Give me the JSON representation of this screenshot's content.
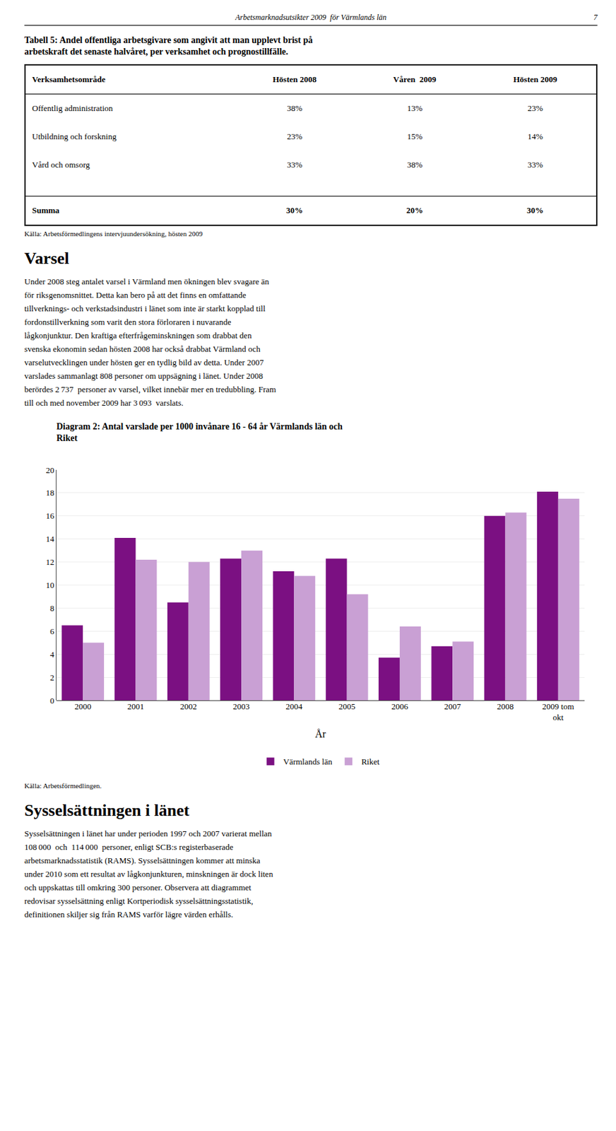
{
  "page_header": "Arbetsmarknadsutsikter 2009  för Värmlands län",
  "page_number": "7",
  "table": {
    "title_lines": [
      "Tabell 5: Andel offentliga arbetsgivare som angivit att man upplevt brist på",
      "arbetskraft det senaste halvåret, per verksamhet och prognostillfälle."
    ],
    "headers": [
      "Verksamhetsområde",
      "Hösten 2008",
      "Våren  2009",
      "Hösten 2009"
    ],
    "rows": [
      [
        "Offentlig administration",
        "38%",
        "13%",
        "23%"
      ],
      [
        "Utbildning och forskning",
        "23%",
        "15%",
        "14%"
      ],
      [
        "Vård och omsorg",
        "33%",
        "38%",
        "33%"
      ],
      [
        "Summa",
        "30%",
        "20%",
        "30%"
      ]
    ],
    "source": "Källa: Arbetsförmedlingens intervjuundersökning, hösten 2009"
  },
  "section_title": "Varsel",
  "section_text1_lines": [
    "Under 2008 steg antalet varsel i Värmland men ökningen blev svagare än",
    "för riksgenomsnittet. Detta kan bero på att det finns en omfattande",
    "tillverknings- och verkstadsindustri i länet som inte är starkt kopplad till",
    "fordonstillverkning som varit den stora förloraren i nuvarande",
    "lågkonjunktur. Den kraftiga efterfrågeminskningen som drabbat den",
    "svenska ekonomin sedan hösten 2008 har också drabbat Värmland och",
    "varselutvecklingen under hösten ger en tydlig bild av detta. Under 2007",
    "varslades sammanlagt 808 personer om uppsägning i länet. Under 2008",
    "berördes 2 737  personer av varsel, vilket innebär mer en tredubbling. Fram",
    "till och med november 2009 har 3 093  varslats."
  ],
  "chart_data": {
    "type": "bar",
    "title": "Diagram 2: Antal varslade per 1000 invånare 16 - 64 år Värmlands län och\nRiket",
    "x_label": "År",
    "categories": [
      "2000",
      "2001",
      "2002",
      "2003",
      "2004",
      "2005",
      "2006",
      "2007",
      "2008",
      "2009 tom\nokt"
    ],
    "series": [
      {
        "name": "Värmlands län",
        "color": "#7B1082",
        "values": [
          6.5,
          14.1,
          8.5,
          12.3,
          11.2,
          12.3,
          3.7,
          4.7,
          16.0,
          18.1
        ]
      },
      {
        "name": "Riket",
        "color": "#C9A0D4",
        "values": [
          5.0,
          12.2,
          12.0,
          13.0,
          10.8,
          9.2,
          6.4,
          5.1,
          16.3,
          17.5
        ]
      }
    ],
    "ylim": [
      0,
      20
    ],
    "yticks": [
      0,
      2,
      4,
      6,
      8,
      10,
      12,
      14,
      16,
      18,
      20
    ],
    "grid": true,
    "legend": "bottom"
  },
  "chart_source": "Källa: Arbetsförmedlingen.",
  "section_title2": "Sysselsättningen i länet",
  "section_text2_lines": [
    "Sysselsättningen i länet har under perioden 1997 och 2007 varierat mellan",
    "108 000  och  114 000  personer, enligt SCB:s registerbaserade",
    "arbetsmarknadsstatistik (RAMS). Sysselsättningen kommer att minska",
    "under 2010 som ett resultat av lågkonjunkturen, minskningen är dock liten",
    "och uppskattas till omkring 300 personer. Observera att diagrammet",
    "redovisar sysselsättning enligt Kortperiodisk sysselsättningsstatistik,",
    "definitionen skiljer sig från RAMS varför lägre värden erhålls."
  ]
}
